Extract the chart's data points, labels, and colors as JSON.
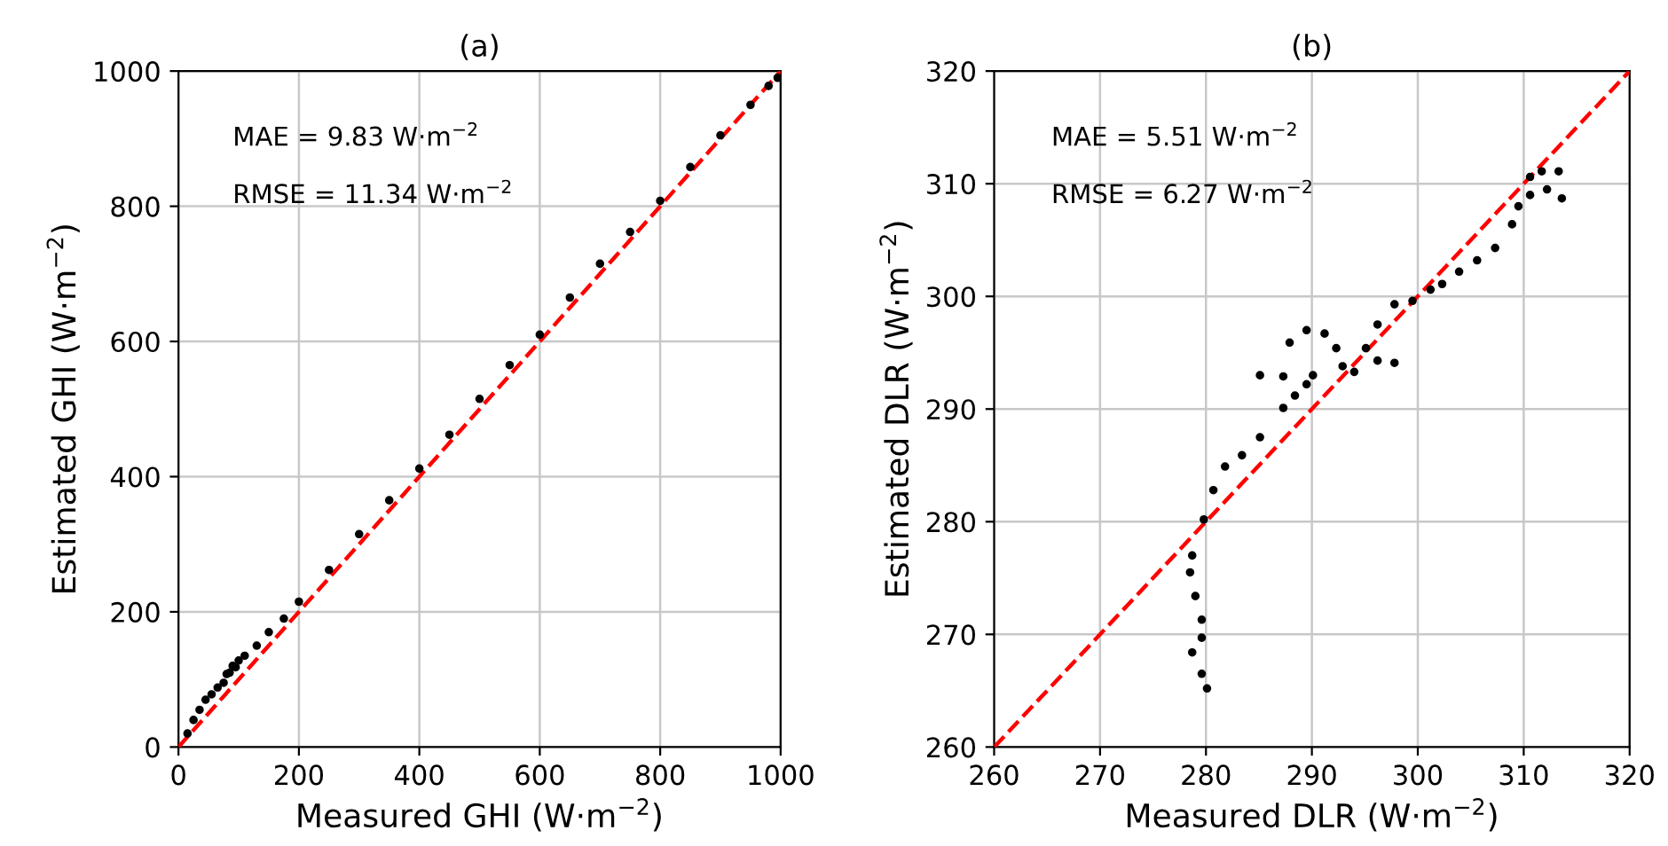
{
  "chart_data": [
    {
      "type": "scatter",
      "title": "(a)",
      "xlabel": "Measured GHI (W·m$^{−2}$)",
      "ylabel": "Estimated GHI (W·m$^{−2}$)",
      "xlim": [
        0,
        1000
      ],
      "ylim": [
        0,
        1000
      ],
      "xticks": [
        0,
        200,
        400,
        600,
        800,
        1000
      ],
      "yticks": [
        0,
        200,
        400,
        600,
        800,
        1000
      ],
      "grid": true,
      "annotations": [
        "MAE = 9.83 W·m$^{−2}$",
        "RMSE = 11.34 W·m$^{−2}$"
      ],
      "series": [
        {
          "color": "#000000",
          "marker": "circle",
          "x": [
            15,
            25,
            35,
            45,
            55,
            65,
            75,
            80,
            85,
            90,
            95,
            100,
            110,
            130,
            150,
            175,
            200,
            250,
            300,
            350,
            400,
            450,
            500,
            550,
            600,
            650,
            700,
            750,
            800,
            850,
            900,
            950,
            980,
            995
          ],
          "values": [
            20,
            40,
            55,
            70,
            78,
            88,
            95,
            108,
            110,
            120,
            118,
            128,
            135,
            150,
            170,
            190,
            215,
            262,
            315,
            365,
            412,
            462,
            515,
            565,
            610,
            665,
            715,
            762,
            808,
            858,
            905,
            950,
            978,
            990
          ]
        },
        {
          "type": "line",
          "color": "#ff0000",
          "line_style": "dashed",
          "x": [
            0,
            1000
          ],
          "values": [
            0,
            1000
          ]
        }
      ]
    },
    {
      "type": "scatter",
      "title": "(b)",
      "xlabel": "Measured DLR (W·m$^{−2}$)",
      "ylabel": "Estimated DLR (W·m$^{−2}$)",
      "xlim": [
        260,
        320
      ],
      "ylim": [
        260,
        320
      ],
      "xticks": [
        260,
        270,
        280,
        290,
        300,
        310,
        320
      ],
      "yticks": [
        260,
        270,
        280,
        290,
        300,
        310,
        320
      ],
      "grid": true,
      "annotations": [
        "MAE = 5.51 W·m$^{−2}$",
        "RMSE = 6.27 W·m$^{−2}$"
      ],
      "series": [
        {
          "color": "#000000",
          "marker": "circle",
          "x": [
            280.1,
            279.6,
            278.7,
            279.6,
            279.6,
            279.0,
            278.5,
            278.7,
            279.8,
            280.7,
            281.8,
            283.4,
            285.1,
            287.3,
            288.4,
            289.5,
            285.1,
            287.3,
            290.1,
            287.9,
            289.5,
            291.2,
            292.3,
            292.9,
            294.0,
            295.1,
            296.2,
            297.8,
            296.2,
            297.8,
            299.5,
            301.2,
            302.3,
            303.9,
            305.6,
            307.3,
            308.9,
            309.5,
            310.6,
            312.2,
            313.6,
            311.7,
            313.3,
            310.6
          ],
          "values": [
            265.2,
            266.5,
            268.4,
            269.7,
            271.3,
            273.4,
            275.5,
            277.0,
            280.2,
            282.8,
            284.9,
            285.9,
            287.5,
            290.1,
            291.2,
            292.2,
            293.0,
            292.9,
            293.0,
            295.9,
            297.0,
            296.7,
            295.4,
            293.8,
            293.3,
            295.4,
            294.3,
            294.1,
            297.5,
            299.3,
            299.6,
            300.6,
            301.1,
            302.2,
            303.2,
            304.3,
            306.4,
            308.0,
            309.0,
            309.5,
            308.7,
            311.1,
            311.1,
            310.6
          ]
        },
        {
          "type": "line",
          "color": "#ff0000",
          "line_style": "dashed",
          "x": [
            260,
            320
          ],
          "values": [
            260,
            320
          ]
        }
      ]
    }
  ]
}
